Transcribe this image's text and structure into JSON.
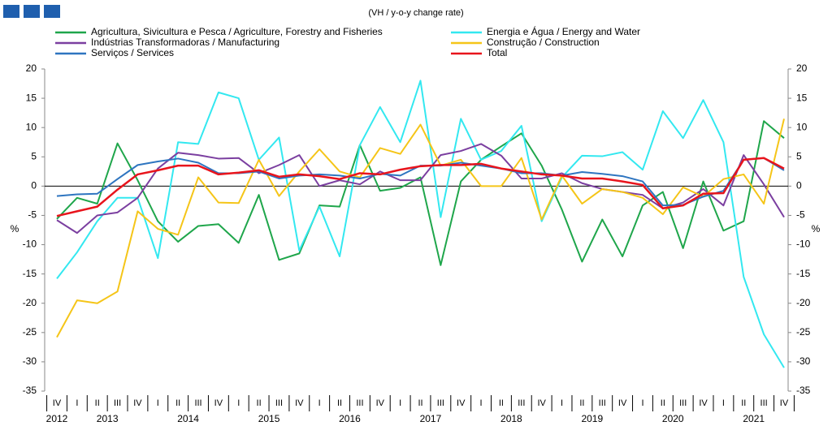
{
  "chart_data": {
    "type": "line",
    "subtitle": "(VH / y-o-y change rate)",
    "y_label": "%",
    "categories": [
      "IV",
      "I",
      "II",
      "III",
      "IV",
      "I",
      "II",
      "III",
      "IV",
      "I",
      "II",
      "III",
      "IV",
      "I",
      "II",
      "III",
      "IV",
      "I",
      "II",
      "III",
      "IV",
      "I",
      "II",
      "III",
      "IV",
      "I",
      "II",
      "III",
      "IV",
      "I",
      "II",
      "III",
      "IV",
      "I",
      "II",
      "III",
      "IV"
    ],
    "years": [
      "2012",
      "2013",
      "2014",
      "2015",
      "2016",
      "2017",
      "2018",
      "2019",
      "2020",
      "2021"
    ],
    "ylim": [
      -35,
      20
    ],
    "yticks": [
      -35,
      -30,
      -25,
      -20,
      -15,
      -10,
      -5,
      0,
      5,
      10,
      15,
      20
    ],
    "y2lim": [
      -35,
      20
    ],
    "y2ticks": [
      -35,
      -30,
      -25,
      -20,
      -15,
      -10,
      -5,
      0,
      5,
      10,
      15,
      20
    ],
    "series": [
      {
        "name": "Agricultura, Sivicultura e Pesca / Agriculture, Forestry and Fisheries",
        "color": "#1fa64b",
        "values": [
          -5.6,
          -2,
          -3,
          7.3,
          1,
          -6,
          -9.5,
          -6.8,
          -6.5,
          -9.7,
          -1.5,
          -12.6,
          -11.5,
          -3.3,
          -3.5,
          7,
          -0.8,
          -0.3,
          1.5,
          -13.5,
          0.8,
          4.5,
          6.8,
          9,
          3.5,
          -4,
          -12.9,
          -5.7,
          -12,
          -3.3,
          -1,
          -10.6,
          0.8,
          -7.6,
          -6,
          11.1,
          8.2
        ]
      },
      {
        "name": "Energia e Água / Energy and Water",
        "color": "#33e8f0",
        "values": [
          -15.8,
          -11.3,
          -6,
          -2,
          -2,
          -12.3,
          7.5,
          7.2,
          16,
          15,
          4.5,
          8.3,
          -11,
          -3.5,
          -12,
          7,
          13.5,
          7.5,
          18,
          -5.3,
          11.5,
          4.5,
          6,
          10.3,
          -6,
          1.5,
          5.2,
          5.1,
          5.8,
          2.8,
          12.8,
          8.2,
          14.7,
          7.5,
          -15.5,
          -25.3,
          -31
        ]
      },
      {
        "name": "Indústrias Transformadoras / Manufacturing",
        "color": "#7b3fa0",
        "values": [
          -5.8,
          -8,
          -5,
          -4.5,
          -2,
          3,
          5.7,
          5.3,
          4.7,
          4.8,
          2.2,
          3.6,
          5.3,
          0,
          1,
          0.3,
          2.5,
          1,
          1,
          5.3,
          6,
          7.2,
          5.2,
          1.3,
          1.3,
          2.2,
          0.5,
          -0.5,
          -1,
          -1.5,
          -3.8,
          -2.8,
          -0.5,
          -3.3,
          5.3,
          0.3,
          -5.3
        ]
      },
      {
        "name": "Construção / Construction",
        "color": "#f5c518",
        "values": [
          -25.8,
          -19.5,
          -20,
          -18,
          -4.3,
          -7.3,
          -8.3,
          1.5,
          -2.8,
          -2.9,
          4.5,
          -1.7,
          2.5,
          6.3,
          2.5,
          1.5,
          6.5,
          5.5,
          10.5,
          3.5,
          4.5,
          0,
          0,
          4.8,
          -5.7,
          1.8,
          -3,
          -0.5,
          -1,
          -2,
          -4.8,
          -0.2,
          -1.8,
          1.2,
          2,
          -3,
          11.5
        ]
      },
      {
        "name": "Serviços / Services",
        "color": "#2e75c0",
        "values": [
          -1.7,
          -1.4,
          -1.3,
          1.2,
          3.6,
          4.2,
          4.7,
          4,
          2.2,
          2.2,
          2.5,
          1.3,
          1.8,
          2,
          1.8,
          1.3,
          2.1,
          1.8,
          3.5,
          3.5,
          4,
          3.5,
          3,
          2.2,
          2.2,
          1.8,
          2.4,
          2.1,
          1.7,
          0.8,
          -3.3,
          -3.2,
          -1.8,
          -0.8,
          4.5,
          4.8,
          2.7
        ]
      },
      {
        "name": "Total",
        "color": "#e8141c",
        "values": [
          -5.1,
          -4.3,
          -3.5,
          -0.6,
          2,
          2.7,
          3.5,
          3.5,
          2,
          2.3,
          2.7,
          1.6,
          2,
          1.7,
          1.2,
          2.2,
          2,
          2.8,
          3.4,
          3.6,
          3.6,
          3.8,
          3,
          2.5,
          2,
          1.8,
          1.3,
          1.3,
          0.8,
          0.2,
          -3.8,
          -3.3,
          -1.3,
          -1.2,
          4.5,
          4.8,
          3
        ]
      }
    ]
  }
}
